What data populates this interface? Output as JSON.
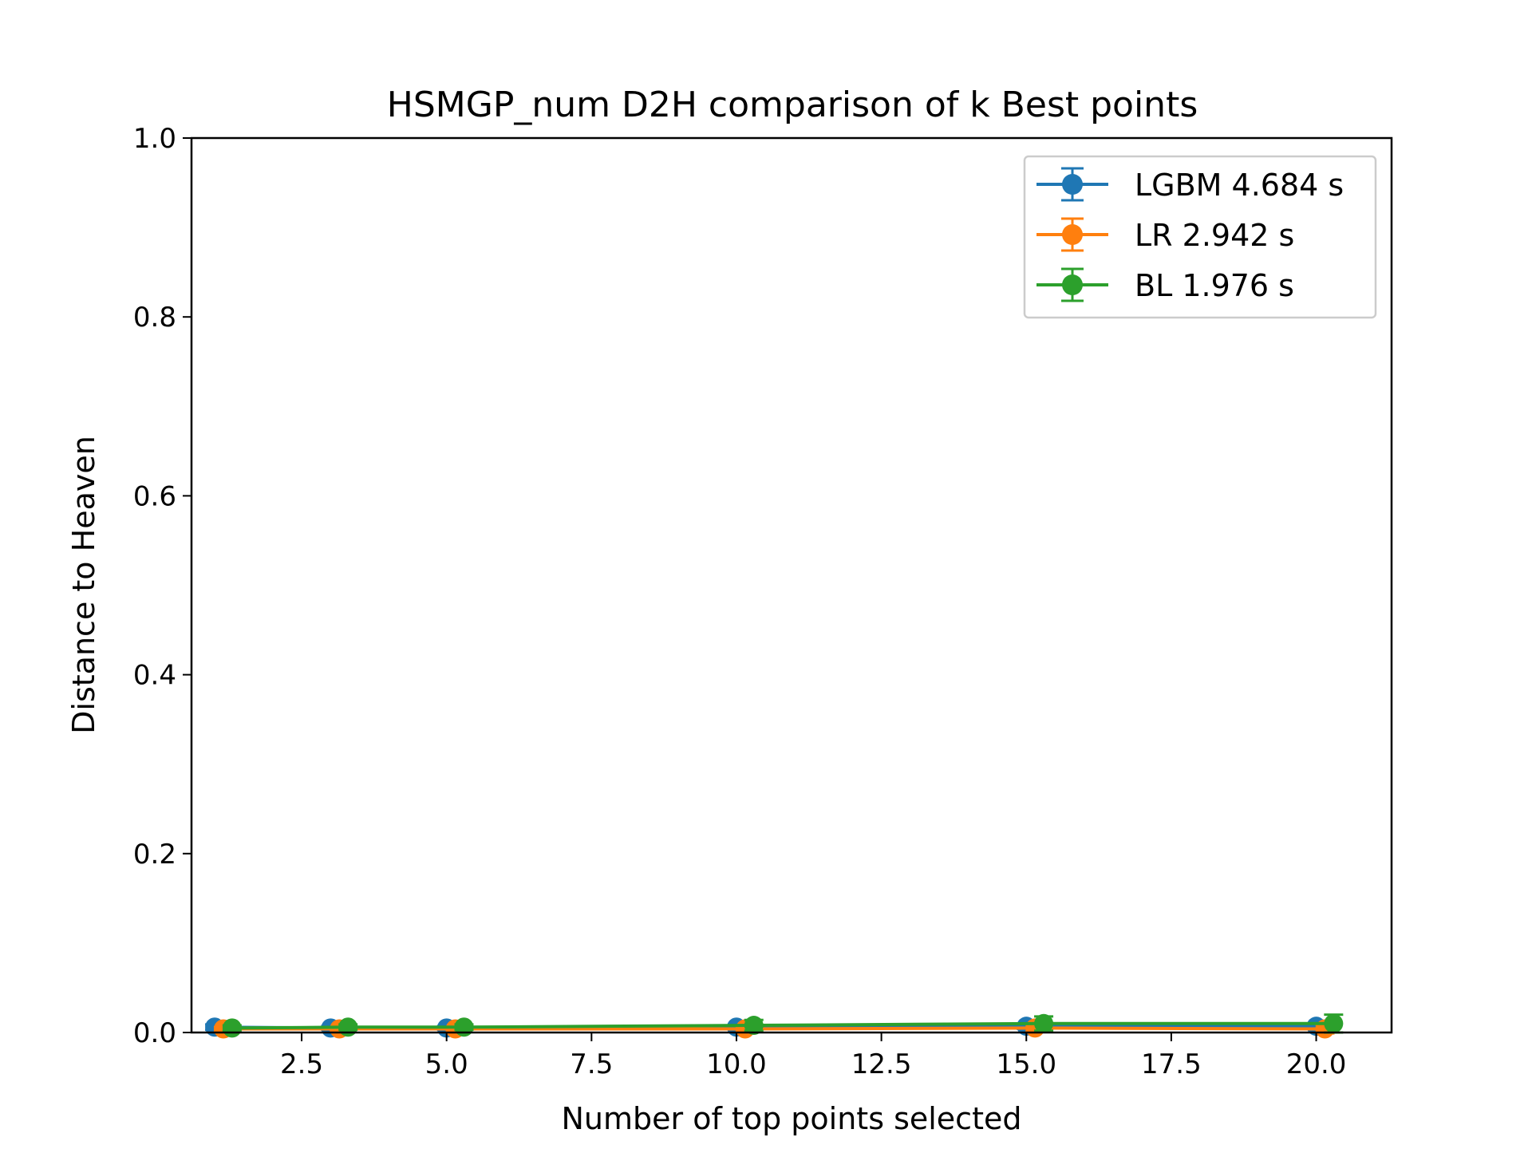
{
  "chart_data": {
    "type": "line",
    "title": "HSMGP_num D2H comparison of k Best points",
    "xlabel": "Number of top points selected",
    "ylabel": "Distance to Heaven",
    "xlim": [
      0.6,
      21.3
    ],
    "ylim": [
      0.0,
      1.0
    ],
    "xticks": [
      2.5,
      5.0,
      7.5,
      10.0,
      12.5,
      15.0,
      17.5,
      20.0
    ],
    "xtick_labels": [
      "2.5",
      "5.0",
      "7.5",
      "10.0",
      "12.5",
      "15.0",
      "17.5",
      "20.0"
    ],
    "yticks": [
      0.0,
      0.2,
      0.4,
      0.6,
      0.8,
      1.0
    ],
    "ytick_labels": [
      "0.0",
      "0.2",
      "0.4",
      "0.6",
      "0.8",
      "1.0"
    ],
    "grid": false,
    "legend_position": "top-right",
    "series": [
      {
        "name": "LGBM 4.684 s",
        "color": "#1f77b4",
        "x": [
          1,
          3,
          5,
          10,
          15,
          20
        ],
        "y": [
          0.006,
          0.005,
          0.005,
          0.006,
          0.007,
          0.007
        ],
        "err": [
          0.003,
          0.002,
          0.002,
          0.002,
          0.003,
          0.003
        ]
      },
      {
        "name": "LR 2.942 s",
        "color": "#ff7f0e",
        "x": [
          1.15,
          3.15,
          5.15,
          10.15,
          15.15,
          20.15
        ],
        "y": [
          0.004,
          0.004,
          0.004,
          0.004,
          0.005,
          0.004
        ],
        "err": [
          0.002,
          0.002,
          0.002,
          0.003,
          0.004,
          0.005
        ]
      },
      {
        "name": "BL 1.976 s",
        "color": "#2ca02c",
        "x": [
          1.3,
          3.3,
          5.3,
          10.3,
          15.3,
          20.3
        ],
        "y": [
          0.005,
          0.006,
          0.006,
          0.008,
          0.01,
          0.01
        ],
        "err": [
          0.003,
          0.003,
          0.003,
          0.006,
          0.008,
          0.01
        ]
      }
    ]
  }
}
